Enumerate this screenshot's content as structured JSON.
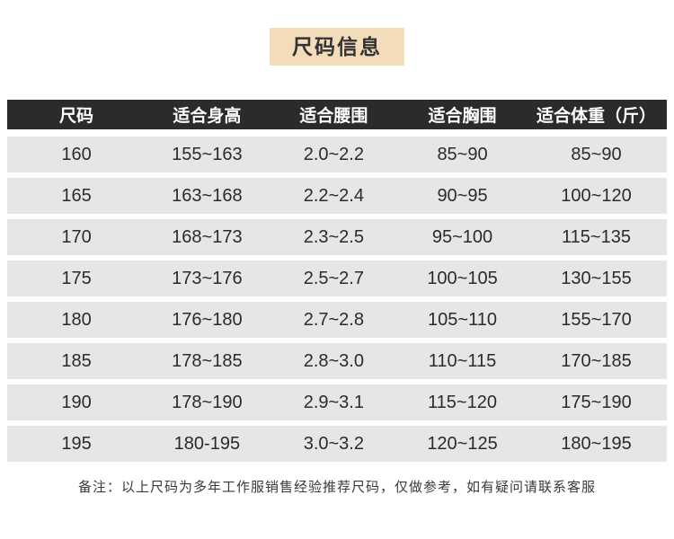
{
  "title": "尺码信息",
  "table": {
    "headers": [
      "尺码",
      "适合身高",
      "适合腰围",
      "适合胸围",
      "适合体重（斤）"
    ],
    "rows": [
      [
        "160",
        "155~163",
        "2.0~2.2",
        "85~90",
        "85~90"
      ],
      [
        "165",
        "163~168",
        "2.2~2.4",
        "90~95",
        "100~120"
      ],
      [
        "170",
        "168~173",
        "2.3~2.5",
        "95~100",
        "115~135"
      ],
      [
        "175",
        "173~176",
        "2.5~2.7",
        "100~105",
        "130~155"
      ],
      [
        "180",
        "176~180",
        "2.7~2.8",
        "105~110",
        "155~170"
      ],
      [
        "185",
        "178~185",
        "2.8~3.0",
        "110~115",
        "170~185"
      ],
      [
        "190",
        "178~190",
        "2.9~3.1",
        "115~120",
        "175~190"
      ],
      [
        "195",
        "180-195",
        "3.0~3.2",
        "120~125",
        "180~195"
      ]
    ]
  },
  "note": "备注：以上尺码为多年工作服销售经验推荐尺码，仅做参考，如有疑问请联系客服",
  "colors": {
    "banner_bg": "#f2dcba",
    "header_bg": "#2b2b2b",
    "header_text": "#ffffff",
    "row_bg": "#e6e6e6",
    "body_text": "#333333"
  }
}
